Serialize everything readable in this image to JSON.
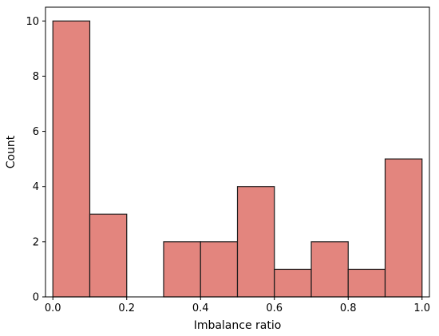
{
  "chart_data": {
    "type": "histogram",
    "title": "",
    "xlabel": "Imbalance ratio",
    "ylabel": "Count",
    "xlim": [
      -0.02,
      1.02
    ],
    "ylim": [
      0,
      10.5
    ],
    "bin_edges": [
      0.0,
      0.1,
      0.2,
      0.3,
      0.4,
      0.5,
      0.6,
      0.7,
      0.8,
      0.9,
      1.0
    ],
    "values": [
      10,
      3,
      0,
      2,
      2,
      4,
      1,
      2,
      1,
      5
    ],
    "x_ticks": [
      {
        "value": 0.0,
        "label": "0.0"
      },
      {
        "value": 0.2,
        "label": "0.2"
      },
      {
        "value": 0.4,
        "label": "0.4"
      },
      {
        "value": 0.6,
        "label": "0.6"
      },
      {
        "value": 0.8,
        "label": "0.8"
      },
      {
        "value": 1.0,
        "label": "1.0"
      }
    ],
    "y_ticks": [
      {
        "value": 0,
        "label": "0"
      },
      {
        "value": 2,
        "label": "2"
      },
      {
        "value": 4,
        "label": "4"
      },
      {
        "value": 6,
        "label": "6"
      },
      {
        "value": 8,
        "label": "8"
      },
      {
        "value": 10,
        "label": "10"
      }
    ],
    "bar_color": "#e3857e",
    "edge_color": "#1a1a1a",
    "grid": false,
    "legend": "none"
  }
}
